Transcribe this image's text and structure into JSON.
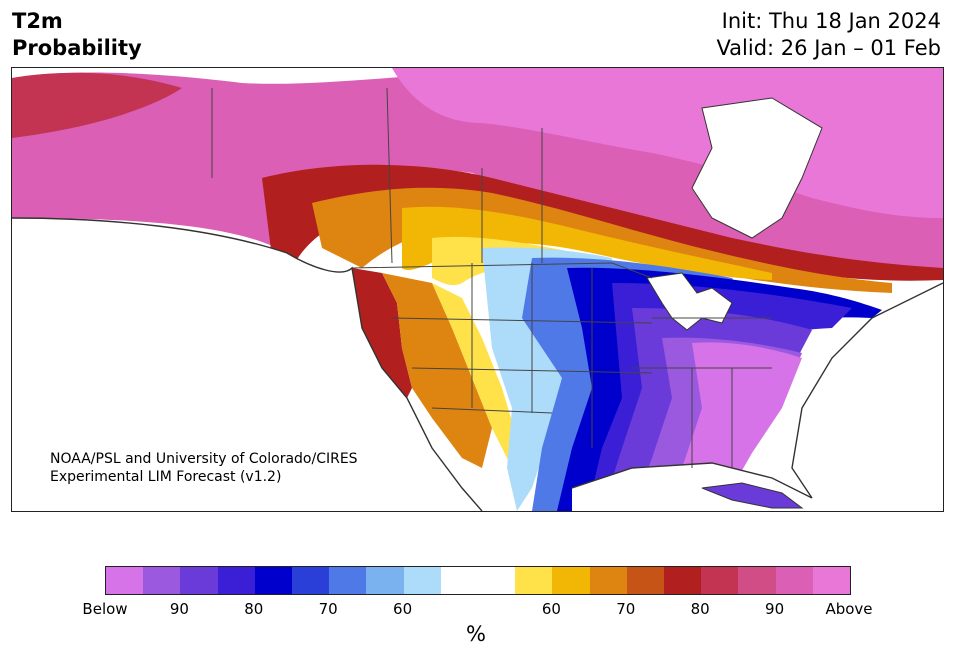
{
  "header": {
    "variable": "T2m",
    "product": "Probability",
    "init": "Init: Thu 18 Jan 2024",
    "valid": "Valid: 26 Jan – 01 Feb"
  },
  "credit": {
    "line1": "NOAA/PSL and University of Colorado/CIRES",
    "line2": "Experimental LIM Forecast (v1.2)"
  },
  "colorbar": {
    "colors": [
      "#d673e8",
      "#9b59e0",
      "#6a3bd8",
      "#3a1fd6",
      "#0000cc",
      "#2a3fd8",
      "#4f79e6",
      "#79b2ef",
      "#addcfa",
      "#ffffff",
      "#ffffff",
      "#ffe14a",
      "#f2b705",
      "#de8410",
      "#c65416",
      "#b21f1f",
      "#c23451",
      "#d04d86",
      "#db5fb5",
      "#e877d8"
    ],
    "ticks": [
      "Below",
      "90",
      "80",
      "70",
      "60",
      "60",
      "70",
      "80",
      "90",
      "Above"
    ],
    "unit": "%"
  },
  "legend_colors": {
    "below_extreme": "#d673e8",
    "below_strong": "#0000cc",
    "above_strong": "#b21f1f",
    "above_extreme": "#e877d8",
    "neutral": "#ffffff"
  }
}
